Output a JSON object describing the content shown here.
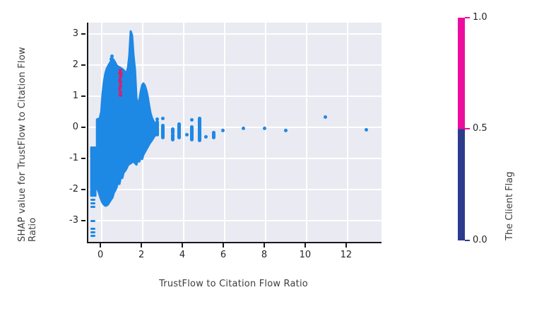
{
  "chart_data": {
    "type": "scatter",
    "title": "",
    "xlabel": "TrustFlow to Citation Flow Ratio",
    "ylabel": "SHAP value for TrustFlow to Citation Flow Ratio",
    "xlim": [
      -0.66,
      13.66
    ],
    "ylim": [
      -3.68,
      3.36
    ],
    "xticks": [
      0,
      2,
      4,
      6,
      8,
      10,
      12
    ],
    "yticks": [
      -3,
      -2,
      -1,
      0,
      1,
      2,
      3
    ],
    "grid": true,
    "legend_position": "none",
    "plot_bg": "#EAEAF2",
    "grid_color": "#FFFFFF",
    "point_color_low": "#1E88E5",
    "point_color_high": "#D02472",
    "series": [
      {
        "name": "client-flag-0-dense-mass",
        "render": "silhouette",
        "color": "#1E88E5",
        "columns": [
          [
            -0.24,
            -1.95,
            0.25
          ],
          [
            -0.17,
            -2.05,
            0.27
          ],
          [
            -0.1,
            -2.2,
            0.29
          ],
          [
            -0.03,
            -2.33,
            0.5
          ],
          [
            0.03,
            -2.42,
            1.05
          ],
          [
            0.1,
            -2.48,
            1.45
          ],
          [
            0.17,
            -2.52,
            1.73
          ],
          [
            0.24,
            -2.51,
            1.88
          ],
          [
            0.31,
            -2.47,
            1.97
          ],
          [
            0.38,
            -2.4,
            2.05
          ],
          [
            0.45,
            -2.32,
            2.13
          ],
          [
            0.52,
            -2.26,
            2.21
          ],
          [
            0.59,
            -2.1,
            2.15
          ],
          [
            0.66,
            -2.02,
            2.07
          ],
          [
            0.72,
            -1.93,
            1.99
          ],
          [
            0.79,
            -1.78,
            1.95
          ],
          [
            0.86,
            -1.82,
            1.93
          ],
          [
            0.93,
            -1.58,
            1.9
          ],
          [
            1.0,
            -1.63,
            1.87
          ],
          [
            1.07,
            -1.45,
            1.83
          ],
          [
            1.14,
            -1.4,
            1.78
          ],
          [
            1.21,
            -1.32,
            1.75
          ],
          [
            1.28,
            -1.22,
            1.92
          ],
          [
            1.34,
            -1.18,
            2.3
          ],
          [
            1.41,
            -1.16,
            3.08
          ],
          [
            1.48,
            -1.12,
            2.95
          ],
          [
            1.55,
            -1.1,
            2.3
          ],
          [
            1.62,
            -1.15,
            1.85
          ],
          [
            1.69,
            -1.2,
            0.95
          ],
          [
            1.76,
            -1.06,
            0.7
          ],
          [
            1.83,
            -1.1,
            0.88
          ],
          [
            1.9,
            -0.95,
            1.15
          ],
          [
            1.97,
            -1.02,
            1.35
          ],
          [
            2.03,
            -0.88,
            1.41
          ],
          [
            2.1,
            -0.8,
            1.34
          ],
          [
            2.17,
            -0.72,
            1.2
          ],
          [
            2.24,
            -0.64,
            1.0
          ],
          [
            2.31,
            -0.55,
            0.7
          ],
          [
            2.38,
            -0.48,
            0.45
          ],
          [
            2.45,
            -0.42,
            0.3
          ],
          [
            2.52,
            -0.34,
            0.2
          ],
          [
            2.59,
            -0.27,
            0.12
          ]
        ]
      },
      {
        "name": "client-flag-0-left-strip",
        "render": "silhouette",
        "color": "#1E88E5",
        "columns": [
          [
            -0.52,
            -2.2,
            -0.65
          ],
          [
            -0.31,
            -2.2,
            -0.65
          ]
        ]
      },
      {
        "name": "client-flag-0-left-outlier-dashes",
        "render": "dashes",
        "color": "#1E88E5",
        "points": [
          [
            -0.42,
            -2.33
          ],
          [
            -0.42,
            -2.44
          ],
          [
            -0.42,
            -2.55
          ],
          [
            -0.42,
            -3.0
          ],
          [
            -0.42,
            -3.27
          ],
          [
            -0.42,
            -3.37
          ],
          [
            -0.42,
            -3.48
          ]
        ]
      },
      {
        "name": "client-flag-0-streaks",
        "render": "streaks",
        "color": "#1E88E5",
        "segments": [
          [
            2.72,
            -0.23,
            0.18
          ],
          [
            2.97,
            -0.34,
            0.05
          ],
          [
            3.45,
            -0.18,
            -0.05
          ],
          [
            3.45,
            -0.39,
            -0.25
          ],
          [
            3.79,
            -0.34,
            0.11
          ],
          [
            4.4,
            -0.39,
            0.0
          ],
          [
            4.76,
            -0.41,
            0.28
          ],
          [
            5.45,
            -0.34,
            -0.16
          ]
        ]
      },
      {
        "name": "client-flag-0-dots",
        "render": "dots",
        "color": "#1E88E5",
        "points": [
          [
            0.5,
            2.28
          ],
          [
            0.45,
            2.18
          ],
          [
            2.72,
            0.27
          ],
          [
            2.97,
            0.28
          ],
          [
            4.17,
            -0.23
          ],
          [
            4.4,
            0.23
          ],
          [
            5.07,
            -0.3
          ],
          [
            5.93,
            -0.1
          ],
          [
            6.93,
            -0.04
          ],
          [
            7.96,
            -0.04
          ],
          [
            8.97,
            -0.11
          ],
          [
            10.93,
            0.32
          ],
          [
            12.93,
            -0.08
          ]
        ]
      },
      {
        "name": "client-flag-1-cluster",
        "render": "dots",
        "color": "#D02472",
        "points": [
          [
            0.91,
            1.82
          ],
          [
            0.86,
            1.73
          ],
          [
            0.95,
            1.72
          ],
          [
            0.9,
            1.62
          ],
          [
            0.88,
            1.52
          ],
          [
            0.92,
            1.43
          ],
          [
            0.9,
            1.33
          ],
          [
            0.89,
            1.24
          ],
          [
            0.91,
            1.13
          ],
          [
            0.9,
            1.03
          ]
        ]
      }
    ],
    "colorbar": {
      "label": "The Client Flag",
      "top_color": "#EC0D9E",
      "bottom_color": "#2C3B8C",
      "split_fraction": 0.5,
      "ticks": [
        {
          "label": "1.0",
          "frac": 0.0
        },
        {
          "label": "0.5",
          "frac": 0.498
        },
        {
          "label": "0.0",
          "frac": 1.0
        }
      ]
    }
  }
}
